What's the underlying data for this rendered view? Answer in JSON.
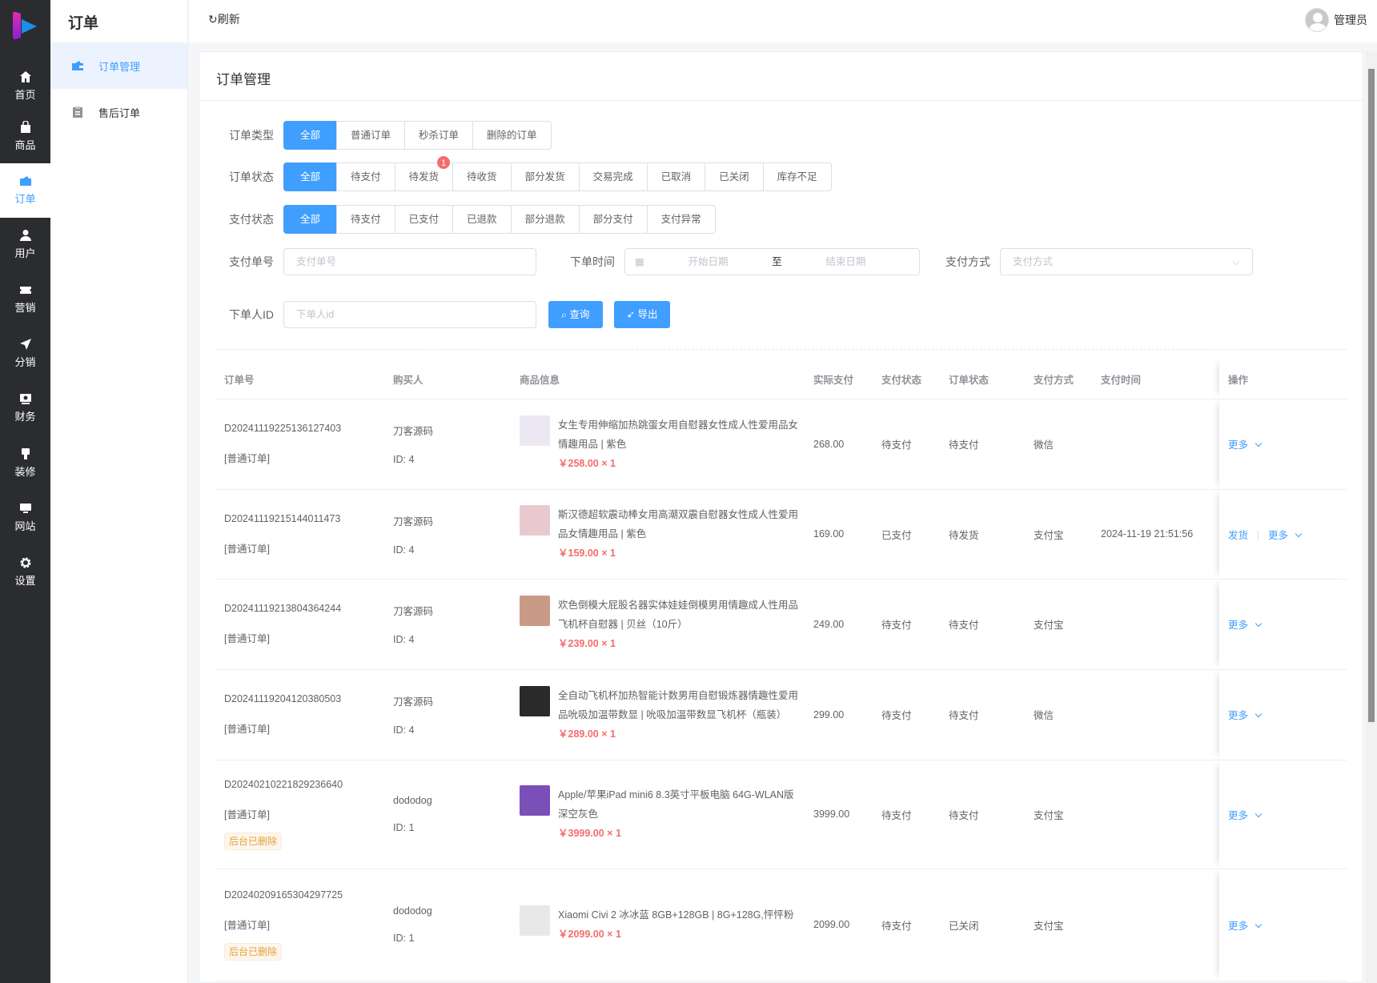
{
  "sidebar": {
    "items": [
      {
        "label": "首页",
        "icon": "home-icon"
      },
      {
        "label": "商品",
        "icon": "bag-icon"
      },
      {
        "label": "订单",
        "icon": "wallet-icon",
        "active": true
      },
      {
        "label": "用户",
        "icon": "user-icon"
      },
      {
        "label": "营销",
        "icon": "ticket-icon"
      },
      {
        "label": "分销",
        "icon": "send-icon"
      },
      {
        "label": "财务",
        "icon": "money-icon"
      },
      {
        "label": "装修",
        "icon": "brush-icon"
      },
      {
        "label": "网站",
        "icon": "monitor-icon"
      },
      {
        "label": "设置",
        "icon": "gear-icon"
      }
    ]
  },
  "subnav": {
    "title": "订单",
    "items": [
      {
        "label": "订单管理",
        "active": true
      },
      {
        "label": "售后订单"
      }
    ]
  },
  "topbar": {
    "refresh": "刷新",
    "user": "管理员"
  },
  "page": {
    "title": "订单管理"
  },
  "filters": {
    "order_type": {
      "label": "订单类型",
      "options": [
        "全部",
        "普通订单",
        "秒杀订单",
        "删除的订单"
      ],
      "selected": "全部"
    },
    "order_status": {
      "label": "订单状态",
      "options": [
        "全部",
        "待支付",
        "待发货",
        "待收货",
        "部分发货",
        "交易完成",
        "已取消",
        "已关闭",
        "库存不足"
      ],
      "selected": "全部",
      "badge": {
        "option": "待发货",
        "count": "1"
      }
    },
    "pay_status": {
      "label": "支付状态",
      "options": [
        "全部",
        "待支付",
        "已支付",
        "已退款",
        "部分退款",
        "部分支付",
        "支付异常"
      ],
      "selected": "全部"
    },
    "pay_no": {
      "label": "支付单号",
      "placeholder": "支付单号"
    },
    "order_time": {
      "label": "下单时间",
      "start_placeholder": "开始日期",
      "separator": "至",
      "end_placeholder": "结束日期"
    },
    "pay_method": {
      "label": "支付方式",
      "placeholder": "支付方式"
    },
    "buyer_id": {
      "label": "下单人ID",
      "placeholder": "下单人id"
    },
    "search_btn": "查询",
    "export_btn": "导出"
  },
  "table": {
    "headers": [
      "订单号",
      "购买人",
      "商品信息",
      "实际支付",
      "支付状态",
      "订单状态",
      "支付方式",
      "支付时间",
      "操作"
    ],
    "rows": [
      {
        "order_no": "D20241119225136127403",
        "type": "[普通订单]",
        "buyer": "刀客源码",
        "buyer_id": "ID: 4",
        "goods": "女生专用伸缩加热跳蛋女用自慰器女性成人性爱用品女情趣用品 | 紫色",
        "price": "￥258.00",
        "qty": "× 1",
        "paid": "268.00",
        "pay_status": "待支付",
        "order_status": "待支付",
        "pay_method": "微信",
        "pay_time": "",
        "actions": [
          "更多"
        ],
        "thumb": "#ece8f3"
      },
      {
        "order_no": "D20241119215144011473",
        "type": "[普通订单]",
        "buyer": "刀客源码",
        "buyer_id": "ID: 4",
        "goods": "斯汉德超软震动棒女用高潮双震自慰器女性成人性爱用品女情趣用品 | 紫色",
        "price": "￥159.00",
        "qty": "× 1",
        "paid": "169.00",
        "pay_status": "已支付",
        "order_status": "待发货",
        "pay_method": "支付宝",
        "pay_time": "2024-11-19 21:51:56",
        "actions": [
          "发货",
          "更多"
        ],
        "thumb": "#e9c9d0"
      },
      {
        "order_no": "D20241119213804364244",
        "type": "[普通订单]",
        "buyer": "刀客源码",
        "buyer_id": "ID: 4",
        "goods": "欢色倒模大屁股名器实体娃娃倒模男用情趣成人性用品飞机杯自慰器 | 贝丝（10斤）",
        "price": "￥239.00",
        "qty": "× 1",
        "paid": "249.00",
        "pay_status": "待支付",
        "order_status": "待支付",
        "pay_method": "支付宝",
        "pay_time": "",
        "actions": [
          "更多"
        ],
        "thumb": "#c99a86"
      },
      {
        "order_no": "D20241119204120380503",
        "type": "[普通订单]",
        "buyer": "刀客源码",
        "buyer_id": "ID: 4",
        "goods": "全自动飞机杯加热智能计数男用自慰锻炼器情趣性爱用品吮吸加温带数显 | 吮吸加温带数显飞机杯（瓶装）",
        "price": "￥289.00",
        "qty": "× 1",
        "paid": "299.00",
        "pay_status": "待支付",
        "order_status": "待支付",
        "pay_method": "微信",
        "pay_time": "",
        "actions": [
          "更多"
        ],
        "thumb": "#2a2a2a"
      },
      {
        "order_no": "D20240210221829236640",
        "type": "[普通订单]",
        "tag": "后台已删除",
        "buyer": "dododog",
        "buyer_id": "ID: 1",
        "goods": "Apple/苹果iPad mini6 8.3英寸平板电脑 64G-WLAN版 深空灰色",
        "price": "￥3999.00",
        "qty": "× 1",
        "paid": "3999.00",
        "pay_status": "待支付",
        "order_status": "待支付",
        "pay_method": "支付宝",
        "pay_time": "",
        "actions": [
          "更多"
        ],
        "thumb": "#7a4fb8"
      },
      {
        "order_no": "D20240209165304297725",
        "type": "[普通订单]",
        "tag": "后台已删除",
        "buyer": "dododog",
        "buyer_id": "ID: 1",
        "goods": "Xiaomi Civi 2 冰冰蓝 8GB+128GB | 8G+128G,怦怦粉",
        "price": "￥2099.00",
        "qty": "× 1",
        "paid": "2099.00",
        "pay_status": "待支付",
        "order_status": "已关闭",
        "pay_method": "支付宝",
        "pay_time": "",
        "actions": [
          "更多"
        ],
        "thumb": "#e8e8e8"
      }
    ]
  },
  "colors": {
    "primary": "#409eff",
    "price": "#f56c6c",
    "sidebar": "#2b2c2f",
    "warning": "#e6a23c"
  }
}
